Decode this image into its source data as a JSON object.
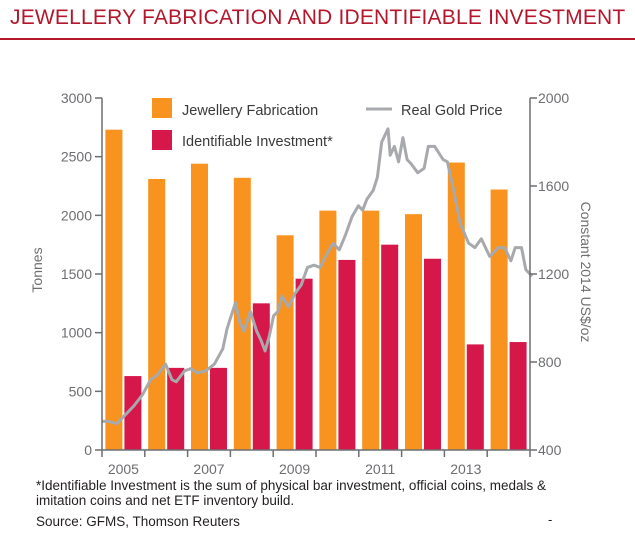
{
  "title": "JEWELLERY FABRICATION AND IDENTIFIABLE INVESTMENT",
  "footnote": "*Identifiable Investment is the sum of physical bar investment, official coins, medals & imitation coins and net ETF inventory build.",
  "source": "Source: GFMS, Thomson Reuters",
  "trailing_mark": "-",
  "colors": {
    "title": "#b5162b",
    "jewellery": "#f7931e",
    "investment": "#d6174a",
    "gold_price": "#a7a9ac",
    "axis": "#6d6e71"
  },
  "chart_data": {
    "type": "bar",
    "categories": [
      "2005",
      "2006",
      "2007",
      "2008",
      "2009",
      "2010",
      "2011",
      "2012",
      "2013",
      "2014"
    ],
    "xticks": [
      "2005",
      "2007",
      "2009",
      "2011",
      "2013"
    ],
    "ylabel": "Tonnes",
    "y2label": "Constant 2014 US$/oz",
    "ylim": [
      0,
      3000
    ],
    "yticks": [
      "0",
      "500",
      "1000",
      "1500",
      "2000",
      "2500",
      "3000"
    ],
    "y2lim": [
      400,
      2000
    ],
    "y2ticks": [
      "400",
      "800",
      "1200",
      "1600",
      "2000"
    ],
    "legend": [
      "Jewellery Fabrication",
      "Real Gold Price",
      "Identifiable Investment*"
    ],
    "legend_position": "top",
    "series": [
      {
        "name": "Jewellery Fabrication",
        "type": "bar",
        "values": [
          2730,
          2310,
          2440,
          2320,
          1830,
          2040,
          2040,
          2010,
          2450,
          2220
        ]
      },
      {
        "name": "Identifiable Investment*",
        "type": "bar",
        "values": [
          630,
          700,
          700,
          1250,
          1460,
          1620,
          1750,
          1630,
          900,
          920
        ]
      },
      {
        "name": "Real Gold Price",
        "type": "line",
        "axis": "right",
        "x": [
          2004.85,
          2005.0,
          2005.2,
          2005.4,
          2005.6,
          2005.8,
          2006.0,
          2006.15,
          2006.35,
          2006.5,
          2006.6,
          2006.8,
          2006.95,
          2007.1,
          2007.3,
          2007.5,
          2007.7,
          2007.8,
          2007.9,
          2008.0,
          2008.1,
          2008.2,
          2008.35,
          2008.5,
          2008.6,
          2008.7,
          2008.8,
          2008.9,
          2009.0,
          2009.1,
          2009.25,
          2009.4,
          2009.55,
          2009.7,
          2009.85,
          2010.0,
          2010.15,
          2010.3,
          2010.45,
          2010.6,
          2010.75,
          2010.9,
          2011.0,
          2011.1,
          2011.25,
          2011.35,
          2011.45,
          2011.6,
          2011.65,
          2011.75,
          2011.85,
          2011.95,
          2012.05,
          2012.15,
          2012.3,
          2012.45,
          2012.55,
          2012.7,
          2012.8,
          2012.9,
          2013.0,
          2013.15,
          2013.3,
          2013.5,
          2013.65,
          2013.8,
          2014.0,
          2014.1,
          2014.2,
          2014.35,
          2014.5,
          2014.6,
          2014.75,
          2014.85,
          2015.0
        ],
        "y": [
          530,
          530,
          520,
          560,
          600,
          650,
          720,
          740,
          790,
          720,
          710,
          760,
          770,
          750,
          760,
          790,
          860,
          950,
          1010,
          1070,
          980,
          940,
          1030,
          940,
          900,
          850,
          920,
          1010,
          1030,
          1100,
          1050,
          1110,
          1150,
          1230,
          1240,
          1230,
          1290,
          1340,
          1310,
          1380,
          1460,
          1510,
          1490,
          1540,
          1580,
          1640,
          1800,
          1860,
          1740,
          1780,
          1710,
          1820,
          1720,
          1700,
          1660,
          1680,
          1780,
          1780,
          1750,
          1720,
          1710,
          1580,
          1430,
          1340,
          1320,
          1360,
          1280,
          1300,
          1320,
          1320,
          1260,
          1320,
          1320,
          1220,
          1190
        ]
      }
    ]
  }
}
